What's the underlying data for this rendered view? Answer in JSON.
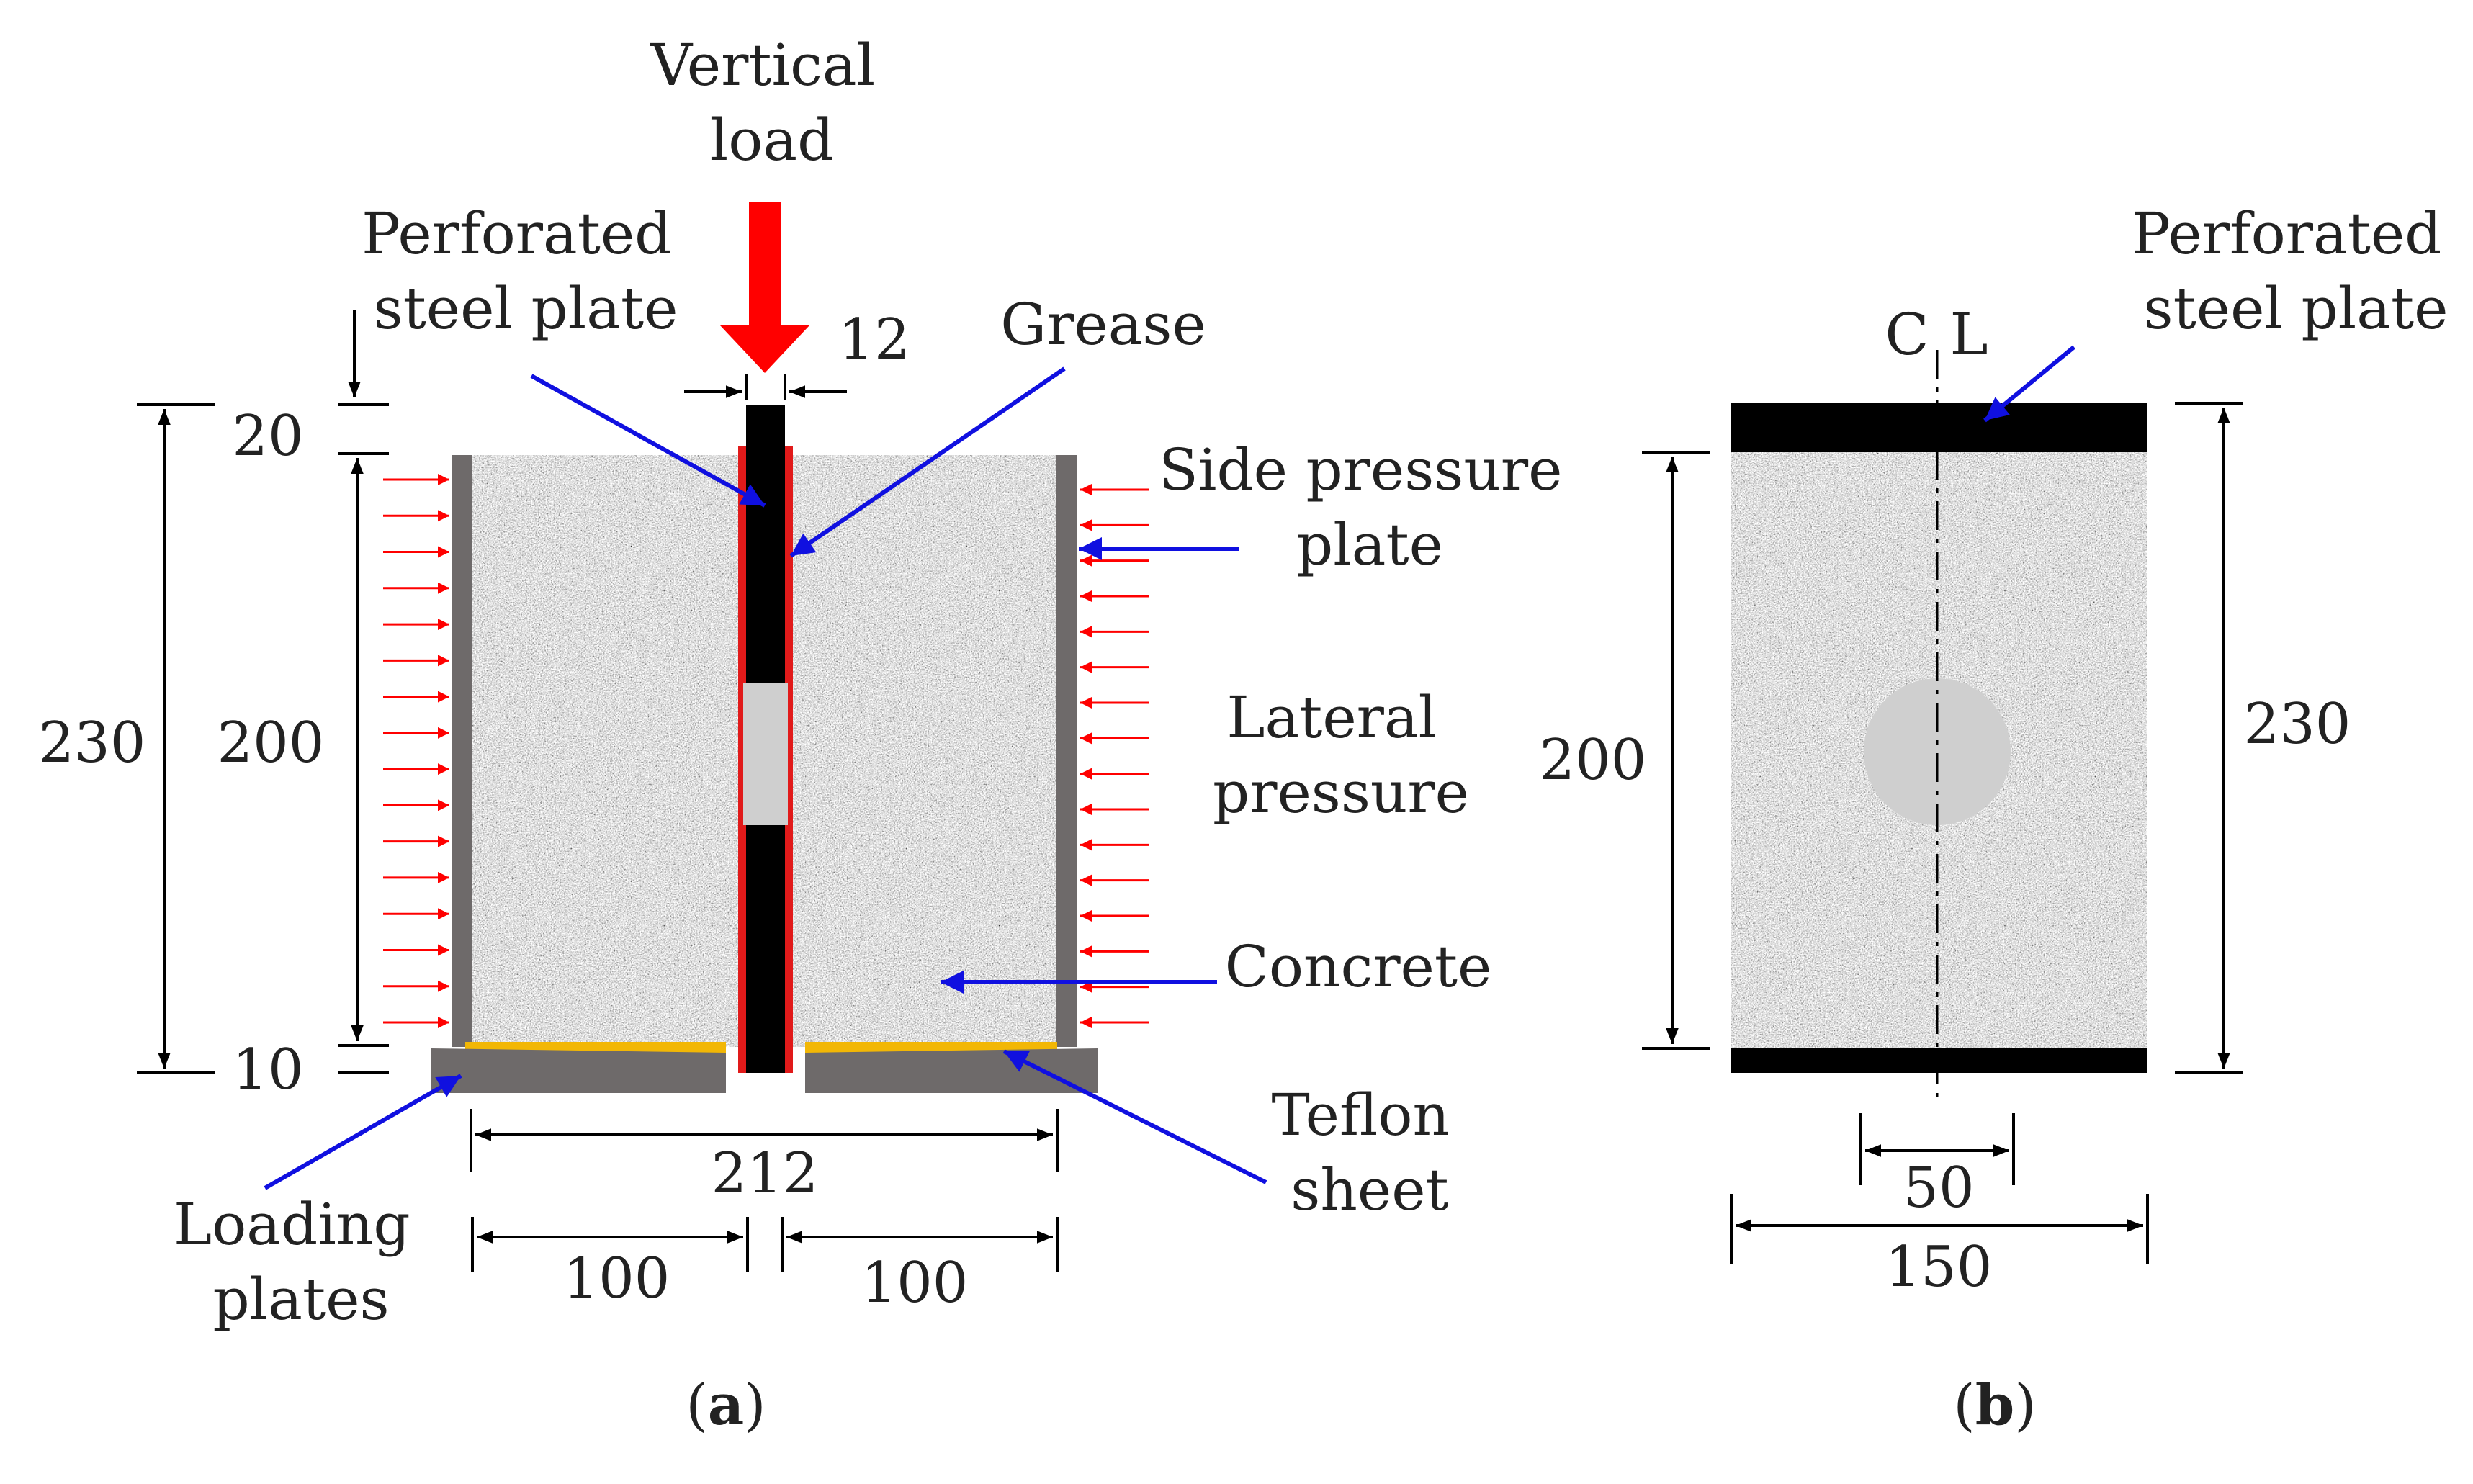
{
  "panel_a": {
    "vertical_load": [
      "Vertical",
      "load"
    ],
    "perforated_steel_plate": [
      "Perforated",
      "steel plate"
    ],
    "grease": "Grease",
    "side_pressure_plate": [
      "Side pressure",
      "plate"
    ],
    "lateral_pressure": [
      "Lateral",
      "pressure"
    ],
    "concrete": "Concrete",
    "teflon_sheet": [
      "Teflon",
      "sheet"
    ],
    "loading_plates": [
      "Loading",
      "plates"
    ],
    "dims": {
      "d20": "20",
      "d10": "10",
      "d230": "230",
      "d200": "200",
      "d12": "12",
      "d212": "212",
      "d100_left": "100",
      "d100_right": "100"
    },
    "caption": {
      "open": "(",
      "letter": "a",
      "close": ")"
    }
  },
  "panel_b": {
    "perforated_steel_plate": [
      "Perforated",
      "steel plate"
    ],
    "centerline": {
      "c": "C",
      "l": "L"
    },
    "dims": {
      "d200": "200",
      "d230": "230",
      "d50": "50",
      "d150": "150"
    },
    "caption": {
      "open": "(",
      "letter": "b",
      "close": ")"
    }
  },
  "colors": {
    "concrete": "#d0d0d0",
    "steel": "#000000",
    "side_plate": "#6e6a6a",
    "grease": "#e11a1a",
    "teflon": "#f2b705",
    "arrow_blue": "#1010e0",
    "load_red": "#ff0000",
    "hole": "#cfcfcf"
  }
}
